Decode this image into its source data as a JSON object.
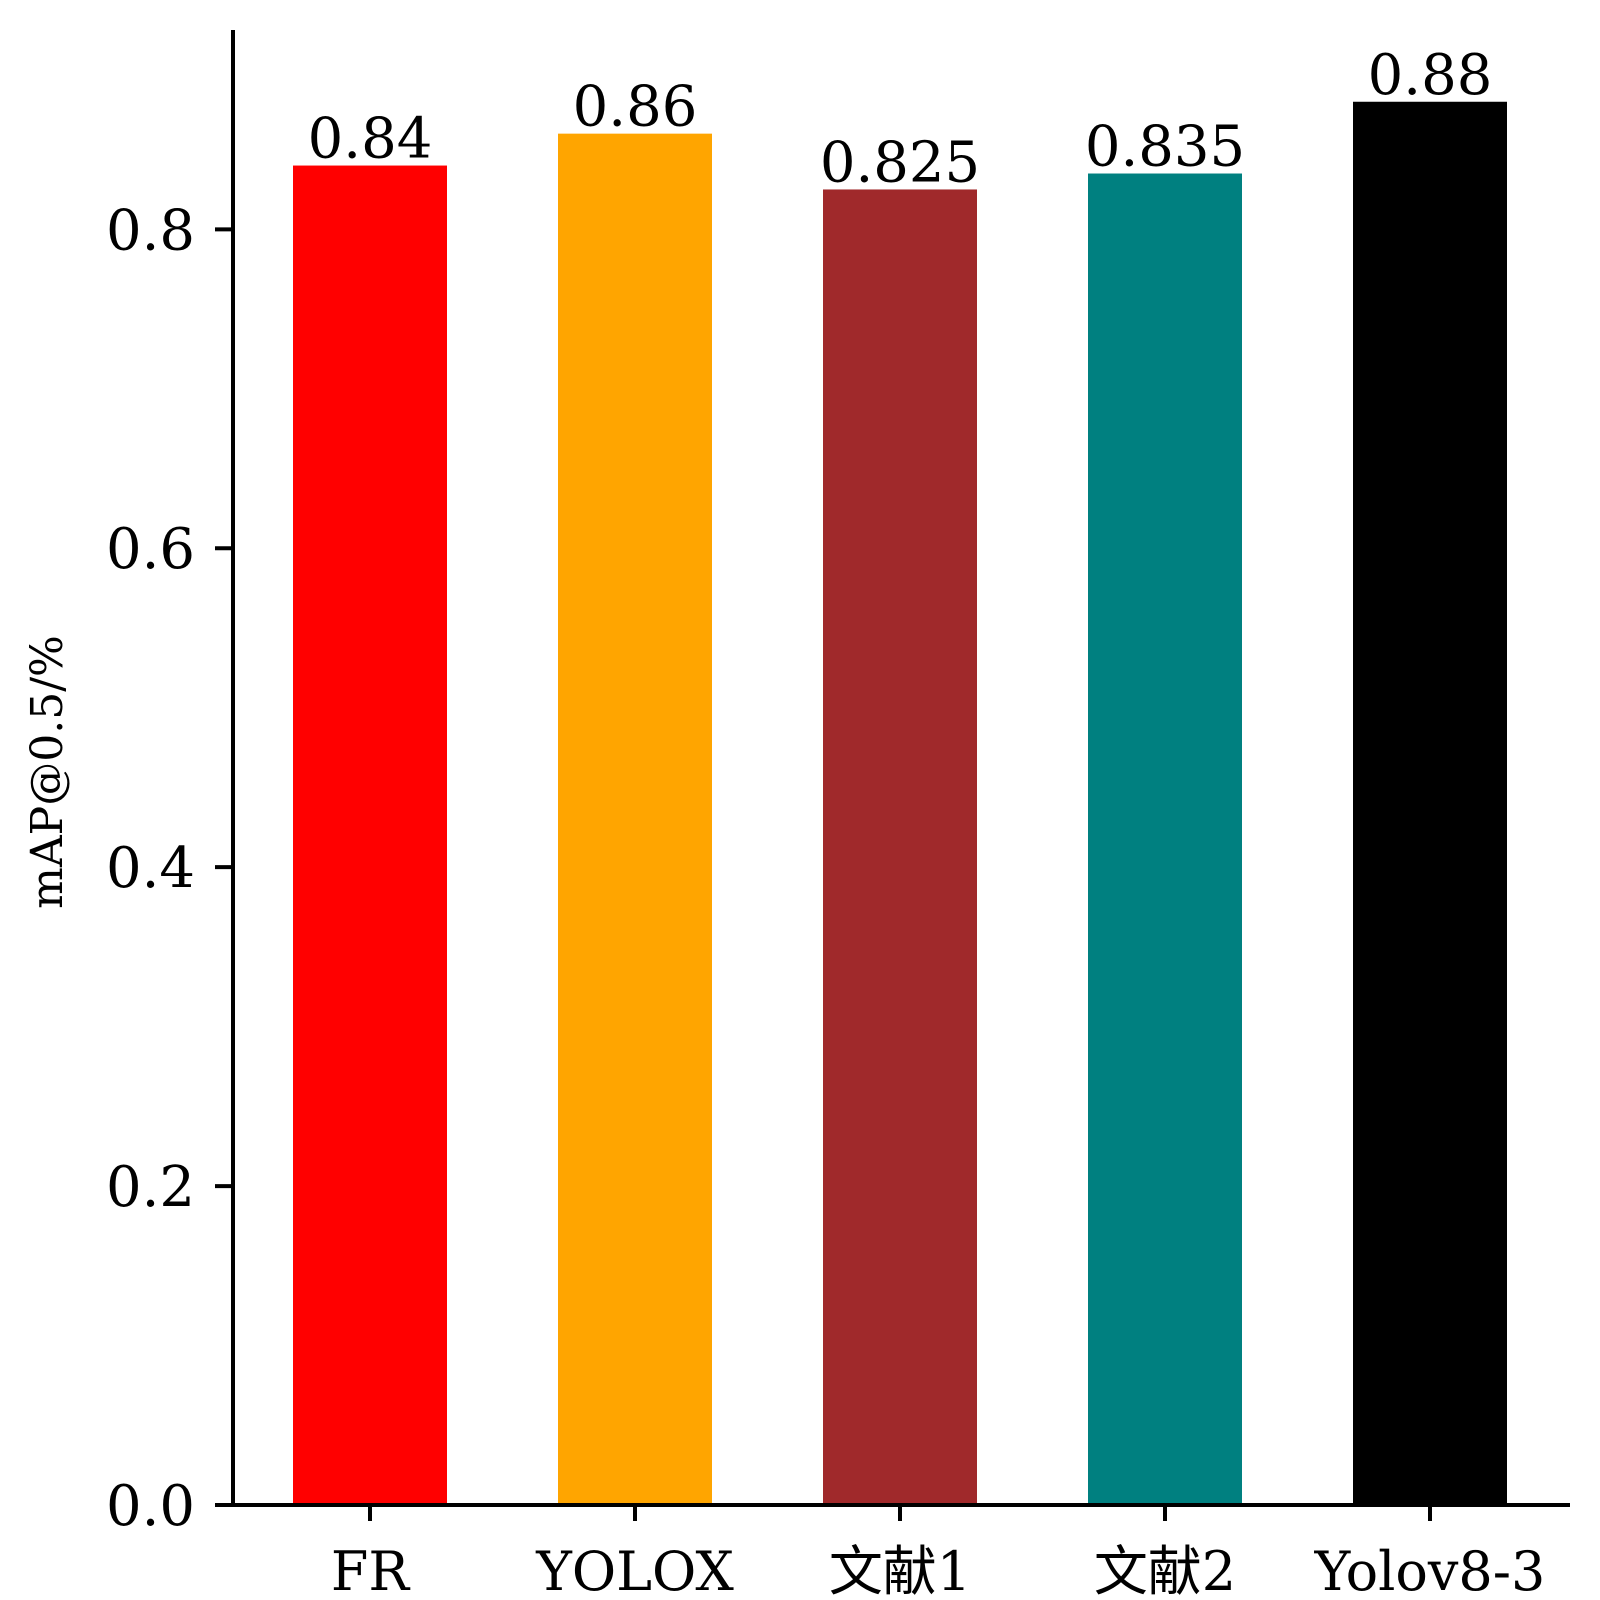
{
  "chart_data": {
    "type": "bar",
    "title": "",
    "xlabel": "",
    "ylabel": "mAP@0.5/%",
    "categories": [
      "FR",
      "YOLOX",
      "文献1",
      "文献2",
      "Yolov8-3"
    ],
    "values": [
      0.84,
      0.86,
      0.825,
      0.835,
      0.88
    ],
    "value_labels": [
      "0.84",
      "0.86",
      "0.825",
      "0.835",
      "0.88"
    ],
    "colors": [
      "#ff0000",
      "#ffa500",
      "#a0292b",
      "#008080",
      "#000000"
    ],
    "ylim": [
      0,
      0.925
    ],
    "yticks": [
      0.0,
      0.2,
      0.4,
      0.6,
      0.8
    ],
    "ytick_labels": [
      "0.0",
      "0.2",
      "0.4",
      "0.6",
      "0.8"
    ],
    "grid": false,
    "legend": "none"
  }
}
